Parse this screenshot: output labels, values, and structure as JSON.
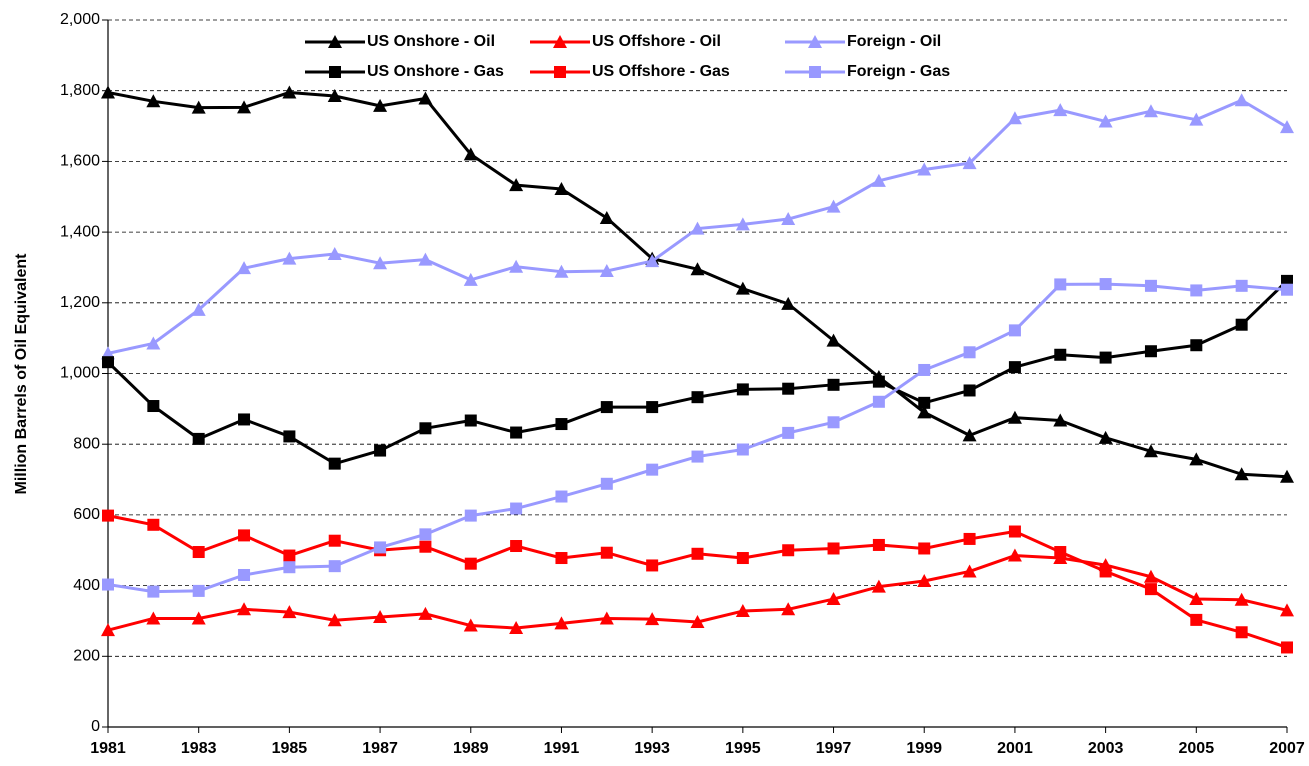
{
  "chart_data": {
    "type": "line",
    "ylabel": "Million Barrels of Oil Equivalent",
    "x": [
      1981,
      1982,
      1983,
      1984,
      1985,
      1986,
      1987,
      1988,
      1989,
      1990,
      1991,
      1992,
      1993,
      1994,
      1995,
      1996,
      1997,
      1998,
      1999,
      2000,
      2001,
      2002,
      2003,
      2004,
      2005,
      2006,
      2007
    ],
    "xlim": [
      1981,
      2007
    ],
    "xticks": [
      1981,
      1983,
      1985,
      1987,
      1989,
      1991,
      1993,
      1995,
      1997,
      1999,
      2001,
      2003,
      2005,
      2007
    ],
    "ylim": [
      0,
      2000
    ],
    "yticks": [
      0,
      200,
      400,
      600,
      800,
      {
        "value": 1000,
        "label": "1,000"
      },
      {
        "value": 1200,
        "label": "1,200"
      },
      {
        "value": 1400,
        "label": "1,400"
      },
      {
        "value": 1600,
        "label": "1,600"
      },
      {
        "value": 1800,
        "label": "1,800"
      },
      {
        "value": 2000,
        "label": "2,000"
      }
    ],
    "grid": true,
    "legend": "top",
    "series": [
      {
        "name": "US Onshore - Oil",
        "color": "#000000",
        "marker": "triangle",
        "values": [
          1795,
          1770,
          1752,
          1753,
          1795,
          1785,
          1757,
          1778,
          1620,
          1533,
          1522,
          1440,
          1325,
          1295,
          1240,
          1197,
          1093,
          990,
          890,
          825,
          875,
          867,
          818,
          780,
          757,
          715,
          708
        ]
      },
      {
        "name": "US Offshore - Oil",
        "color": "#ff0000",
        "marker": "triangle",
        "values": [
          274,
          307,
          307,
          333,
          325,
          302,
          311,
          320,
          287,
          280,
          293,
          307,
          305,
          297,
          328,
          333,
          362,
          397,
          413,
          440,
          485,
          478,
          458,
          425,
          362,
          360,
          330
        ]
      },
      {
        "name": "Foreign - Oil",
        "color": "#9999ff",
        "marker": "triangle",
        "values": [
          1057,
          1085,
          1180,
          1298,
          1325,
          1338,
          1312,
          1322,
          1265,
          1302,
          1288,
          1290,
          1318,
          1410,
          1422,
          1437,
          1472,
          1545,
          1577,
          1595,
          1722,
          1745,
          1713,
          1742,
          1718,
          1773,
          1697
        ]
      },
      {
        "name": "US Onshore - Gas",
        "color": "#000000",
        "marker": "square",
        "values": [
          1032,
          908,
          815,
          870,
          822,
          745,
          782,
          845,
          867,
          833,
          857,
          905,
          905,
          933,
          955,
          957,
          968,
          977,
          917,
          952,
          1018,
          1053,
          1045,
          1063,
          1080,
          1138,
          1262
        ]
      },
      {
        "name": "US Offshore - Gas",
        "color": "#ff0000",
        "marker": "square",
        "values": [
          598,
          572,
          495,
          542,
          485,
          527,
          500,
          510,
          462,
          512,
          478,
          493,
          457,
          490,
          478,
          500,
          505,
          515,
          505,
          532,
          553,
          495,
          440,
          390,
          303,
          268,
          225
        ]
      },
      {
        "name": "Foreign - Gas",
        "color": "#9999ff",
        "marker": "square",
        "values": [
          403,
          383,
          385,
          430,
          452,
          455,
          508,
          545,
          598,
          618,
          652,
          688,
          728,
          765,
          785,
          832,
          862,
          920,
          1010,
          1060,
          1122,
          1252,
          1253,
          1248,
          1235,
          1248,
          1237
        ]
      }
    ]
  }
}
